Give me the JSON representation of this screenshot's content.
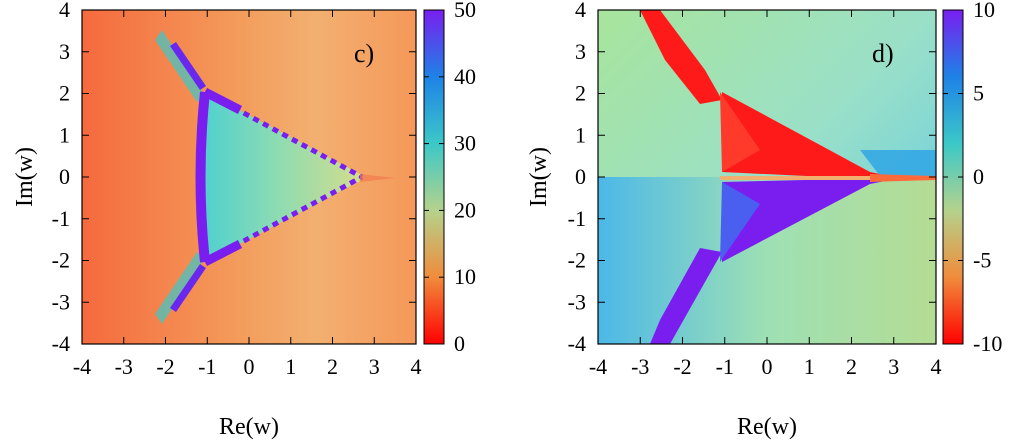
{
  "chart_data": [
    {
      "type": "heatmap",
      "panel_label": "c)",
      "xlabel": "Re(w)",
      "ylabel": "Im(w)",
      "xlim": [
        -4,
        4
      ],
      "ylim": [
        -4,
        4
      ],
      "xticks": [
        -4,
        -3,
        -2,
        -1,
        0,
        1,
        2,
        3,
        4
      ],
      "yticks": [
        -4,
        -3,
        -2,
        -1,
        0,
        1,
        2,
        3,
        4
      ],
      "colorbar": {
        "range": [
          0,
          50
        ],
        "ticks": [
          0,
          10,
          20,
          30,
          40,
          50
        ],
        "colors": [
          "#ff0000",
          "#f08c3c",
          "#b4d28c",
          "#3cc8c8",
          "#1e82e6",
          "#7a1ef0"
        ]
      }
    },
    {
      "type": "heatmap",
      "panel_label": "d)",
      "xlabel": "Re(w)",
      "ylabel": "Im(w)",
      "xlim": [
        -4,
        4
      ],
      "ylim": [
        -4,
        4
      ],
      "xticks": [
        -4,
        -3,
        -2,
        -1,
        0,
        1,
        2,
        3,
        4
      ],
      "yticks": [
        -4,
        -3,
        -2,
        -1,
        0,
        1,
        2,
        3,
        4
      ],
      "colorbar": {
        "range": [
          -10,
          10
        ],
        "ticks": [
          -10,
          -5,
          0,
          5,
          10
        ],
        "colors": [
          "#ff0000",
          "#f08c3c",
          "#b4d28c",
          "#3cc8c8",
          "#1e82e6",
          "#7a1ef0"
        ]
      }
    }
  ]
}
